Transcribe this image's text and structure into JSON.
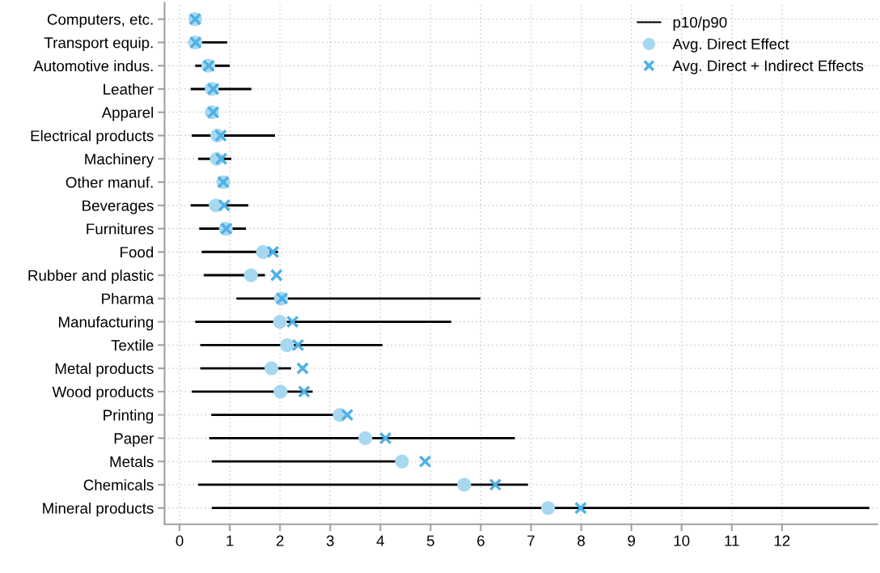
{
  "chart_data": {
    "type": "bar",
    "orientation": "horizontal",
    "categories": [
      "Computers, etc.",
      "Transport equip.",
      "Automotive indus.",
      "Leather",
      "Apparel",
      "Electrical products",
      "Machinery",
      "Other manuf.",
      "Beverages",
      "Furnitures",
      "Food",
      "Rubber and plastic",
      "Pharma",
      "Manufacturing",
      "Textile",
      "Metal products",
      "Wood products",
      "Printing",
      "Paper",
      "Metals",
      "Chemicals",
      "Mineral products"
    ],
    "series": [
      {
        "name": "p10/p90",
        "type": "bar",
        "color": "#000000",
        "base": [
          null,
          0.17,
          0.31,
          0.22,
          null,
          0.24,
          0.37,
          null,
          0.22,
          0.39,
          0.44,
          0.48,
          1.13,
          0.31,
          0.41,
          0.41,
          0.24,
          0.63,
          0.59,
          0.64,
          0.37,
          0.64
        ],
        "values": [
          null,
          0.78,
          0.69,
          1.21,
          null,
          1.66,
          0.66,
          null,
          1.15,
          0.93,
          1.52,
          1.22,
          4.86,
          5.1,
          3.63,
          1.81,
          2.41,
          2.47,
          6.09,
          3.66,
          6.57,
          13.1
        ]
      },
      {
        "name": "Avg. Direct Effect",
        "type": "scatter",
        "marker": "circle",
        "color": "#a8d8f0",
        "values": [
          0.31,
          0.31,
          0.57,
          0.64,
          0.64,
          0.75,
          0.74,
          0.87,
          0.72,
          0.92,
          1.66,
          1.42,
          2.02,
          2.0,
          2.14,
          1.83,
          2.01,
          3.19,
          3.7,
          4.43,
          5.67,
          7.34
        ]
      },
      {
        "name": "Avg. Direct + Indirect Effects",
        "type": "scatter",
        "marker": "cross",
        "color": "#4fb0e6",
        "values": [
          0.31,
          0.32,
          0.58,
          0.67,
          0.67,
          0.82,
          0.83,
          0.87,
          0.89,
          0.93,
          1.86,
          1.93,
          2.04,
          2.25,
          2.36,
          2.45,
          2.48,
          3.34,
          4.1,
          4.89,
          6.29,
          7.99
        ]
      }
    ],
    "xlim": [
      -0.3,
      13.9
    ],
    "xticks": [
      0,
      1,
      2,
      3,
      4,
      5,
      6,
      7,
      8,
      9,
      10,
      11,
      12
    ],
    "grid": true,
    "legend": "top right"
  }
}
